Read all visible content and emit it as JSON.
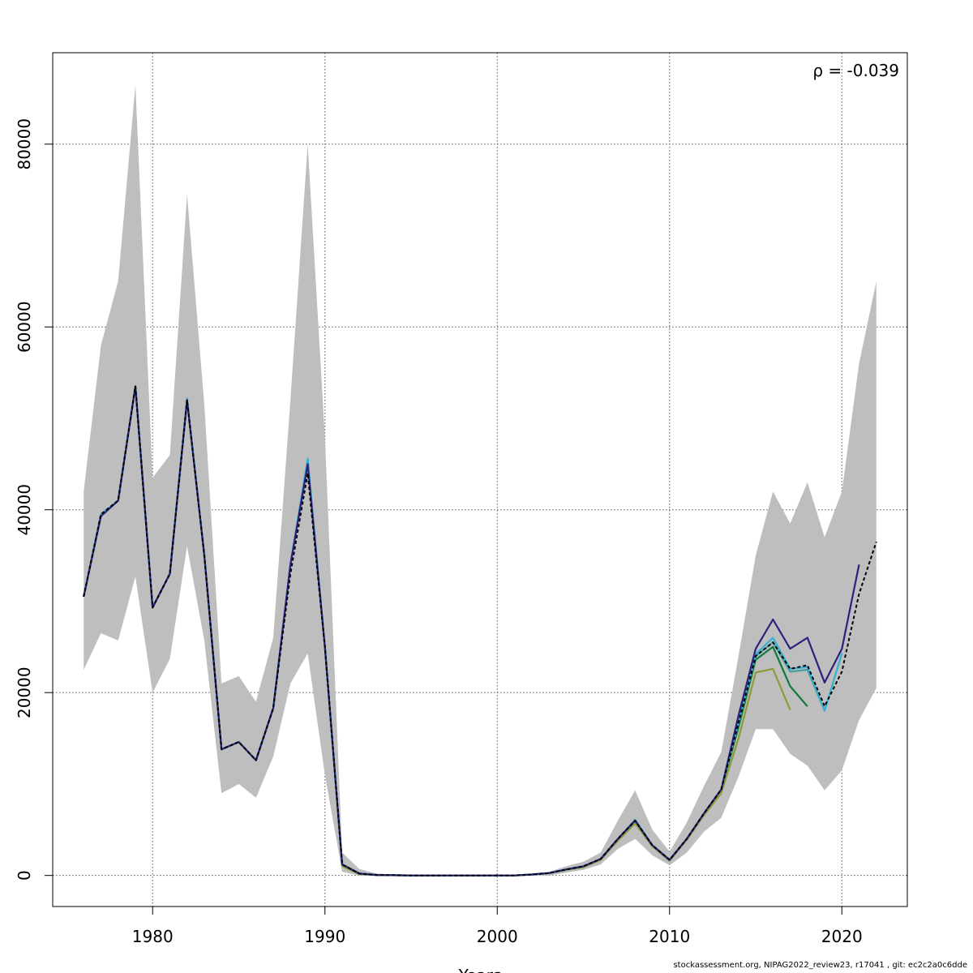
{
  "chart_data": {
    "type": "line",
    "title": "",
    "xlabel": "Years",
    "ylabel": "",
    "annotation": "ρ = -0.039",
    "xlim": [
      1974.2,
      2023.8
    ],
    "ylim": [
      -3400,
      90000
    ],
    "x_ticks": [
      1980,
      1990,
      2000,
      2010,
      2020
    ],
    "y_ticks": [
      0,
      20000,
      40000,
      60000,
      80000
    ],
    "grid": true,
    "legend": "none",
    "band": {
      "x": [
        1976,
        1977,
        1978,
        1979,
        1980,
        1981,
        1982,
        1983,
        1984,
        1985,
        1986,
        1987,
        1988,
        1989,
        1990,
        1991,
        1992,
        1993,
        1994,
        1995,
        1996,
        1997,
        1998,
        1999,
        2000,
        2001,
        2002,
        2003,
        2004,
        2005,
        2006,
        2007,
        2008,
        2009,
        2010,
        2011,
        2012,
        2013,
        2014,
        2015,
        2016,
        2017,
        2018,
        2019,
        2020,
        2021,
        2022
      ],
      "upper": [
        42000,
        58000,
        65000,
        86500,
        43500,
        46000,
        74500,
        51500,
        21000,
        21800,
        19000,
        26000,
        52000,
        80000,
        48000,
        2500,
        700,
        200,
        100,
        50,
        50,
        50,
        50,
        50,
        50,
        50,
        200,
        400,
        1000,
        1500,
        2500,
        6000,
        9300,
        5000,
        2600,
        5800,
        9800,
        13500,
        24000,
        35000,
        42000,
        38500,
        43000,
        37000,
        42000,
        56000,
        65000
      ],
      "lower": [
        22500,
        26500,
        25700,
        32700,
        20000,
        23700,
        36000,
        25700,
        9000,
        10000,
        8500,
        13000,
        21000,
        24300,
        11000,
        400,
        0,
        0,
        0,
        0,
        0,
        0,
        0,
        0,
        0,
        0,
        0,
        0,
        300,
        600,
        1200,
        2900,
        4000,
        2200,
        1100,
        2500,
        4800,
        6300,
        10800,
        16000,
        16000,
        13300,
        12000,
        9300,
        11500,
        17000,
        20500
      ]
    },
    "series": [
      {
        "color": "#000000",
        "dashed": true,
        "x": [
          1976,
          1977,
          1978,
          1979,
          1980,
          1981,
          1982,
          1983,
          1984,
          1985,
          1986,
          1987,
          1988,
          1989,
          1990,
          1991,
          1992,
          1993,
          1994,
          1995,
          1996,
          1997,
          1998,
          1999,
          2000,
          2001,
          2002,
          2003,
          2004,
          2005,
          2006,
          2007,
          2008,
          2009,
          2010,
          2011,
          2012,
          2013,
          2014,
          2015,
          2016,
          2017,
          2018,
          2019,
          2020,
          2021,
          2022
        ],
        "values": [
          30500,
          39500,
          41000,
          53500,
          29300,
          33000,
          52000,
          35000,
          13800,
          14600,
          12600,
          18300,
          33000,
          44000,
          25000,
          1200,
          200,
          50,
          20,
          0,
          0,
          0,
          0,
          0,
          0,
          0,
          100,
          250,
          650,
          1000,
          1800,
          4000,
          6000,
          3300,
          1700,
          4000,
          6800,
          9400,
          16700,
          24000,
          25500,
          22600,
          23000,
          18500,
          22300,
          30800,
          36500
        ]
      },
      {
        "color": "#2d1f7e",
        "dashed": false,
        "x": [
          1976,
          1977,
          1978,
          1979,
          1980,
          1981,
          1982,
          1983,
          1984,
          1985,
          1986,
          1987,
          1988,
          1989,
          1990,
          1991,
          1992,
          1993,
          1994,
          1995,
          1996,
          1997,
          1998,
          1999,
          2000,
          2001,
          2002,
          2003,
          2004,
          2005,
          2006,
          2007,
          2008,
          2009,
          2010,
          2011,
          2012,
          2013,
          2014,
          2015,
          2016,
          2017,
          2018,
          2019,
          2020,
          2021
        ],
        "values": [
          30500,
          39300,
          41000,
          53500,
          29300,
          33000,
          52000,
          35000,
          13800,
          14600,
          12600,
          18300,
          34000,
          45000,
          25000,
          1200,
          200,
          50,
          20,
          0,
          0,
          0,
          0,
          0,
          0,
          0,
          100,
          250,
          650,
          1000,
          1800,
          4000,
          6000,
          3300,
          1700,
          4000,
          6800,
          9400,
          17500,
          24800,
          28000,
          24800,
          26000,
          21100,
          24800,
          34000
        ]
      },
      {
        "color": "#33b1d4",
        "dashed": false,
        "x": [
          1976,
          1977,
          1978,
          1979,
          1980,
          1981,
          1982,
          1983,
          1984,
          1985,
          1986,
          1987,
          1988,
          1989,
          1990,
          1991,
          1992,
          1993,
          1994,
          1995,
          1996,
          1997,
          1998,
          1999,
          2000,
          2001,
          2002,
          2003,
          2004,
          2005,
          2006,
          2007,
          2008,
          2009,
          2010,
          2011,
          2012,
          2013,
          2014,
          2015,
          2016,
          2017,
          2018,
          2019,
          2020
        ],
        "values": [
          30500,
          39500,
          41000,
          53500,
          29300,
          33000,
          52200,
          35000,
          13800,
          14600,
          12600,
          18300,
          34000,
          45600,
          25000,
          1200,
          200,
          50,
          20,
          0,
          0,
          0,
          0,
          0,
          0,
          0,
          100,
          250,
          650,
          1000,
          1800,
          4000,
          6100,
          3300,
          1700,
          4000,
          6800,
          9400,
          16800,
          24200,
          26000,
          22600,
          22800,
          18000,
          24300
        ]
      },
      {
        "color": "#43a0a0",
        "dashed": false,
        "x": [
          1976,
          1977,
          1978,
          1979,
          1980,
          1981,
          1982,
          1983,
          1984,
          1985,
          1986,
          1987,
          1988,
          1989,
          1990,
          1991,
          1992,
          1993,
          1994,
          1995,
          1996,
          1997,
          1998,
          1999,
          2000,
          2001,
          2002,
          2003,
          2004,
          2005,
          2006,
          2007,
          2008,
          2009,
          2010,
          2011,
          2012,
          2013,
          2014,
          2015,
          2016,
          2017,
          2018,
          2019
        ],
        "values": [
          30500,
          39500,
          41000,
          53500,
          29300,
          33000,
          52000,
          35000,
          13800,
          14600,
          12600,
          18300,
          34000,
          45300,
          25000,
          1200,
          200,
          50,
          20,
          0,
          0,
          0,
          0,
          0,
          0,
          0,
          100,
          250,
          650,
          1000,
          1800,
          4000,
          6000,
          3300,
          1700,
          4000,
          6800,
          9400,
          16700,
          24000,
          25500,
          22300,
          22500,
          18000
        ]
      },
      {
        "color": "#0e7a3b",
        "dashed": false,
        "x": [
          1976,
          1977,
          1978,
          1979,
          1980,
          1981,
          1982,
          1983,
          1984,
          1985,
          1986,
          1987,
          1988,
          1989,
          1990,
          1991,
          1992,
          1993,
          1994,
          1995,
          1996,
          1997,
          1998,
          1999,
          2000,
          2001,
          2002,
          2003,
          2004,
          2005,
          2006,
          2007,
          2008,
          2009,
          2010,
          2011,
          2012,
          2013,
          2014,
          2015,
          2016,
          2017,
          2018
        ],
        "values": [
          30500,
          39500,
          41000,
          53500,
          29300,
          33000,
          52000,
          35000,
          13800,
          14600,
          12600,
          18300,
          34000,
          45300,
          25000,
          1200,
          200,
          50,
          20,
          0,
          0,
          0,
          0,
          0,
          0,
          0,
          100,
          250,
          650,
          1000,
          1800,
          4000,
          6000,
          3300,
          1700,
          4000,
          6800,
          9400,
          16200,
          23600,
          25000,
          20700,
          18500
        ]
      },
      {
        "color": "#8d9a36",
        "dashed": false,
        "x": [
          1976,
          1977,
          1978,
          1979,
          1980,
          1981,
          1982,
          1983,
          1984,
          1985,
          1986,
          1987,
          1988,
          1989,
          1990,
          1991,
          1992,
          1993,
          1994,
          1995,
          1996,
          1997,
          1998,
          1999,
          2000,
          2001,
          2002,
          2003,
          2004,
          2005,
          2006,
          2007,
          2008,
          2009,
          2010,
          2011,
          2012,
          2013,
          2014,
          2015,
          2016,
          2017
        ],
        "values": [
          30500,
          39500,
          41000,
          53500,
          29300,
          33000,
          52000,
          35000,
          13800,
          14600,
          12600,
          18300,
          34000,
          45000,
          25000,
          1000,
          150,
          50,
          20,
          0,
          0,
          0,
          0,
          0,
          0,
          0,
          100,
          250,
          600,
          900,
          1700,
          3800,
          5700,
          3200,
          1600,
          3900,
          6600,
          9000,
          15000,
          22200,
          22600,
          18100
        ]
      }
    ]
  },
  "footer": "stockassessment.org, NIPAG2022_review23, r17041 , git: ec2c2a0c6dde"
}
